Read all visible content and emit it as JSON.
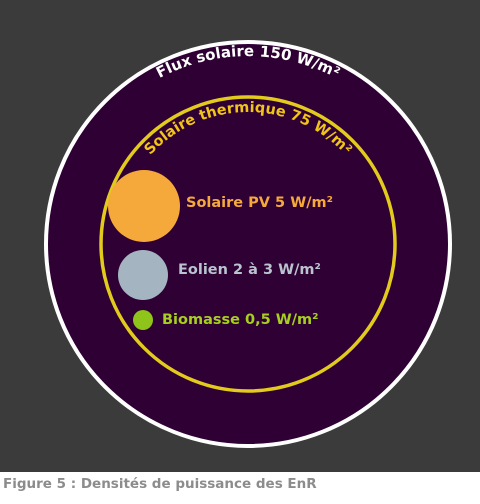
{
  "diagram": {
    "outer_label": "Flux solaire 150 W/m²",
    "thermal_label": "Solaire thermique 75 W/m²",
    "items": [
      {
        "label": "Solaire PV  5 W/m²",
        "color": "#f6a93b"
      },
      {
        "label": "Eolien 2 à 3 W/m²",
        "color": "#a4b4c0"
      },
      {
        "label": "Biomasse 0,5 W/m²",
        "color": "#8fc41a"
      }
    ],
    "colors": {
      "background": "#3b3b3b",
      "disk": "#2e0033",
      "outer_ring": "#ffffff",
      "thermal_ring": "#e2cb1c",
      "outer_text": "#ffffff",
      "thermal_text": "#f0c419",
      "pv_text": "#f6a93b",
      "wind_text": "#b9c4ce",
      "biomass_text": "#a7cf1f"
    }
  },
  "caption": "Figure 5 : Densités de puissance des EnR"
}
